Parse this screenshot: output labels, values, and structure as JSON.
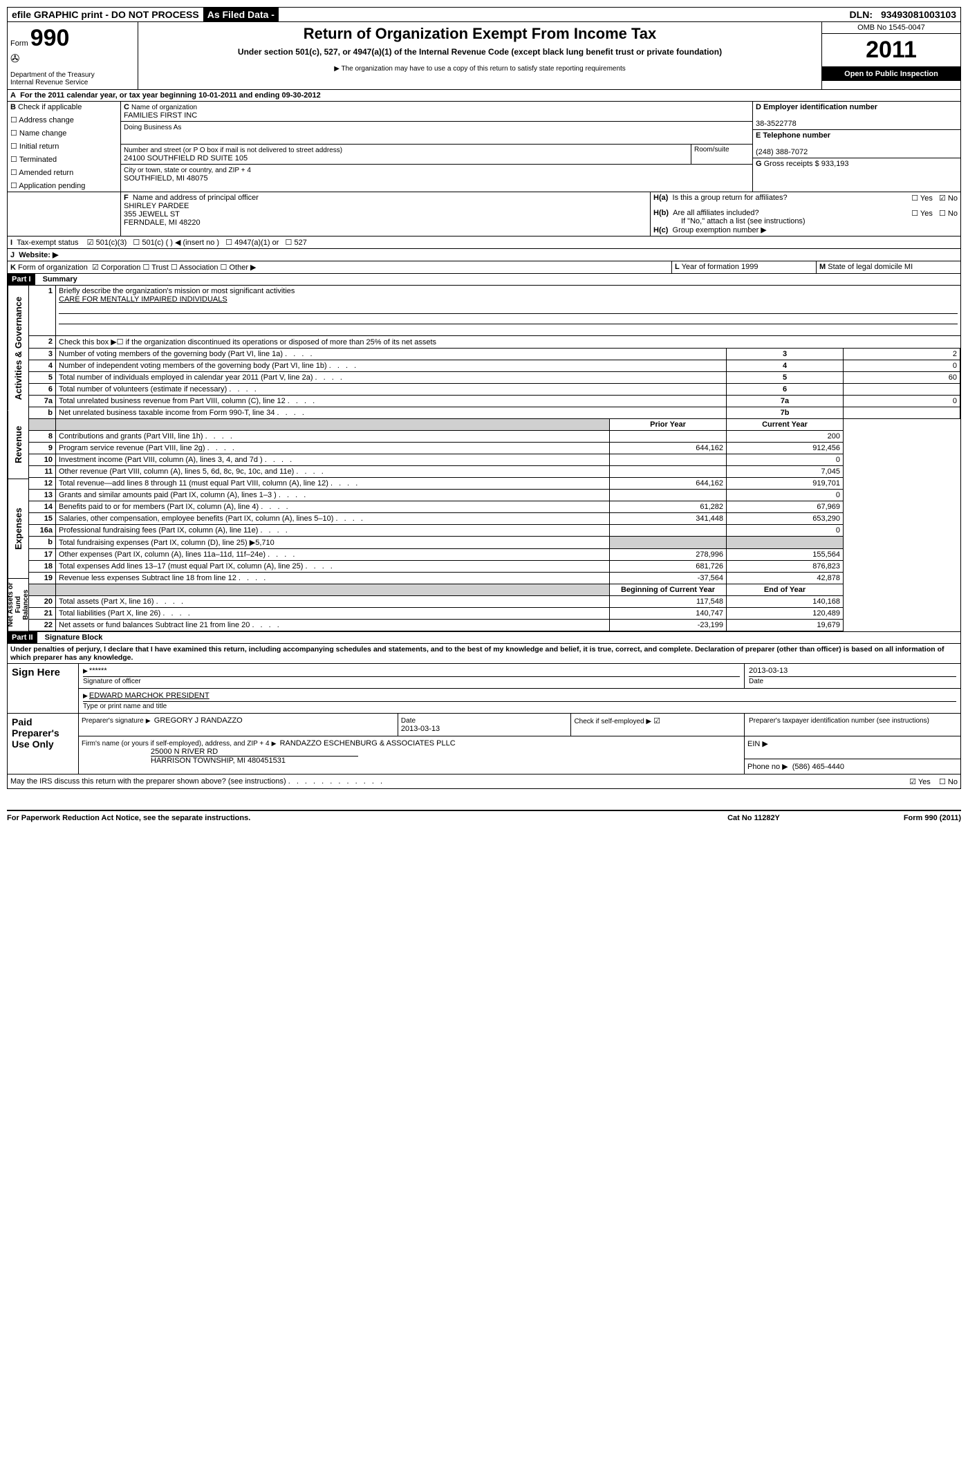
{
  "topbar": {
    "efile": "efile GRAPHIC print - DO NOT PROCESS",
    "asfiled": "As Filed Data -",
    "dln_label": "DLN:",
    "dln": "93493081003103"
  },
  "header": {
    "form_label": "Form",
    "form_no": "990",
    "dept": "Department of the Treasury",
    "irs": "Internal Revenue Service",
    "title": "Return of Organization Exempt From Income Tax",
    "sub1": "Under section 501(c), 527, or 4947(a)(1) of the Internal Revenue Code (except black lung benefit trust or private foundation)",
    "sub2": "▶ The organization may have to use a copy of this return to satisfy state reporting requirements",
    "omb": "OMB No 1545-0047",
    "year": "2011",
    "open": "Open to Public Inspection"
  },
  "A": {
    "text": "For the 2011 calendar year, or tax year beginning 10-01-2011    and ending 09-30-2012"
  },
  "B": {
    "label": "Check if applicable",
    "items": [
      "Address change",
      "Name change",
      "Initial return",
      "Terminated",
      "Amended return",
      "Application pending"
    ]
  },
  "C": {
    "label": "Name of organization",
    "name": "FAMILIES FIRST INC",
    "dba_label": "Doing Business As",
    "street_label": "Number and street (or P O  box if mail is not delivered to street address)",
    "room_label": "Room/suite",
    "street": "24100 SOUTHFIELD RD SUITE 105",
    "city_label": "City or town, state or country, and ZIP + 4",
    "city": "SOUTHFIELD, MI  48075"
  },
  "D": {
    "label": "Employer identification number",
    "val": "38-3522778"
  },
  "E": {
    "label": "Telephone number",
    "val": "(248) 388-7072"
  },
  "G": {
    "label": "Gross receipts $",
    "val": "933,193"
  },
  "F": {
    "label": "Name and address of principal officer",
    "name": "SHIRLEY PARDEE",
    "street": "355 JEWELL ST",
    "city": "FERNDALE, MI  48220"
  },
  "H": {
    "a": "Is this a group return for affiliates?",
    "b": "Are all affiliates included?",
    "b_note": "If \"No,\" attach a list  (see instructions)",
    "c": "Group exemption number ▶"
  },
  "I": {
    "label": "Tax-exempt status",
    "opts": [
      "501(c)(3)",
      "501(c) (   ) ◀ (insert no )",
      "4947(a)(1) or",
      "527"
    ]
  },
  "J": {
    "label": "Website: ▶"
  },
  "K": {
    "label": "Form of organization",
    "opts": [
      "Corporation",
      "Trust",
      "Association",
      "Other ▶"
    ],
    "L": "Year of formation  1999",
    "M": "State of legal domicile  MI"
  },
  "part1": {
    "label": "Part I",
    "title": "Summary",
    "sections": {
      "gov": {
        "label": "Activities & Governance",
        "l1": "Briefly describe the organization's mission or most significant activities",
        "l1v": "CARE FOR MENTALLY IMPAIRED INDIVIDUALS",
        "l2": "Check this box ▶☐ if the organization discontinued its operations or disposed of more than 25% of its net assets",
        "rows": [
          {
            "n": "3",
            "t": "Number of voting members of the governing body (Part VI, line 1a)",
            "k": "3",
            "v": "2"
          },
          {
            "n": "4",
            "t": "Number of independent voting members of the governing body (Part VI, line 1b)",
            "k": "4",
            "v": "0"
          },
          {
            "n": "5",
            "t": "Total number of individuals employed in calendar year 2011 (Part V, line 2a)",
            "k": "5",
            "v": "60"
          },
          {
            "n": "6",
            "t": "Total number of volunteers (estimate if necessary)",
            "k": "6",
            "v": ""
          },
          {
            "n": "7a",
            "t": "Total unrelated business revenue from Part VIII, column (C), line 12",
            "k": "7a",
            "v": "0"
          },
          {
            "n": "b",
            "t": "Net unrelated business taxable income from Form 990-T, line 34",
            "k": "7b",
            "v": ""
          }
        ]
      },
      "rev": {
        "label": "Revenue",
        "head_prior": "Prior Year",
        "head_curr": "Current Year",
        "rows": [
          {
            "n": "8",
            "t": "Contributions and grants (Part VIII, line 1h)",
            "p": "",
            "c": "200"
          },
          {
            "n": "9",
            "t": "Program service revenue (Part VIII, line 2g)",
            "p": "644,162",
            "c": "912,456"
          },
          {
            "n": "10",
            "t": "Investment income (Part VIII, column (A), lines 3, 4, and 7d )",
            "p": "",
            "c": "0"
          },
          {
            "n": "11",
            "t": "Other revenue (Part VIII, column (A), lines 5, 6d, 8c, 9c, 10c, and 11e)",
            "p": "",
            "c": "7,045"
          },
          {
            "n": "12",
            "t": "Total revenue—add lines 8 through 11 (must equal Part VIII, column (A), line 12)",
            "p": "644,162",
            "c": "919,701"
          }
        ]
      },
      "exp": {
        "label": "Expenses",
        "rows": [
          {
            "n": "13",
            "t": "Grants and similar amounts paid (Part IX, column (A), lines 1–3 )",
            "p": "",
            "c": "0"
          },
          {
            "n": "14",
            "t": "Benefits paid to or for members (Part IX, column (A), line 4)",
            "p": "61,282",
            "c": "67,969"
          },
          {
            "n": "15",
            "t": "Salaries, other compensation, employee benefits (Part IX, column (A), lines 5–10)",
            "p": "341,448",
            "c": "653,290"
          },
          {
            "n": "16a",
            "t": "Professional fundraising fees (Part IX, column (A), line 11e)",
            "p": "",
            "c": "0"
          },
          {
            "n": "b",
            "t": "Total fundraising expenses (Part IX, column (D), line 25) ▶5,710",
            "p": "grey",
            "c": "grey"
          },
          {
            "n": "17",
            "t": "Other expenses (Part IX, column (A), lines 11a–11d, 11f–24e)",
            "p": "278,996",
            "c": "155,564"
          },
          {
            "n": "18",
            "t": "Total expenses  Add lines 13–17 (must equal Part IX, column (A), line 25)",
            "p": "681,726",
            "c": "876,823"
          },
          {
            "n": "19",
            "t": "Revenue less expenses  Subtract line 18 from line 12",
            "p": "-37,564",
            "c": "42,878"
          }
        ]
      },
      "net": {
        "label": "Net Assets or Fund Balances",
        "head_prior": "Beginning of Current Year",
        "head_curr": "End of Year",
        "rows": [
          {
            "n": "20",
            "t": "Total assets (Part X, line 16)",
            "p": "117,548",
            "c": "140,168"
          },
          {
            "n": "21",
            "t": "Total liabilities (Part X, line 26)",
            "p": "140,747",
            "c": "120,489"
          },
          {
            "n": "22",
            "t": "Net assets or fund balances  Subtract line 21 from line 20",
            "p": "-23,199",
            "c": "19,679"
          }
        ]
      }
    }
  },
  "part2": {
    "label": "Part II",
    "title": "Signature Block",
    "perjury": "Under penalties of perjury, I declare that I have examined this return, including accompanying schedules and statements, and to the best of my knowledge and belief, it is true, correct, and complete. Declaration of preparer (other than officer) is based on all information of which preparer has any knowledge.",
    "sign_here": "Sign Here",
    "sig_stars": "******",
    "sig_date": "2013-03-13",
    "sig_of": "Signature of officer",
    "date_lbl": "Date",
    "officer": "EDWARD MARCHOK PRESIDENT",
    "officer_lbl": "Type or print name and title",
    "paid": "Paid Preparer's Use Only",
    "prep_sig_lbl": "Preparer's signature",
    "prep_name": "GREGORY J RANDAZZO",
    "prep_date": "2013-03-13",
    "self_lbl": "Check if self-employed ▶",
    "ptin_lbl": "Preparer's taxpayer identification number (see instructions)",
    "firm_lbl": "Firm's name (or yours if self-employed), address, and ZIP + 4",
    "firm": "RANDAZZO ESCHENBURG & ASSOCIATES PLLC",
    "firm_addr1": "25000 N RIVER RD",
    "firm_addr2": "HARRISON TOWNSHIP, MI  480451531",
    "ein_lbl": "EIN ▶",
    "phone_lbl": "Phone no  ▶",
    "phone": "(586) 465-4440",
    "discuss": "May the IRS discuss this return with the preparer shown above? (see instructions)"
  },
  "footer": {
    "left": "For Paperwork Reduction Act Notice, see the separate instructions.",
    "mid": "Cat No 11282Y",
    "right": "Form 990 (2011)"
  }
}
